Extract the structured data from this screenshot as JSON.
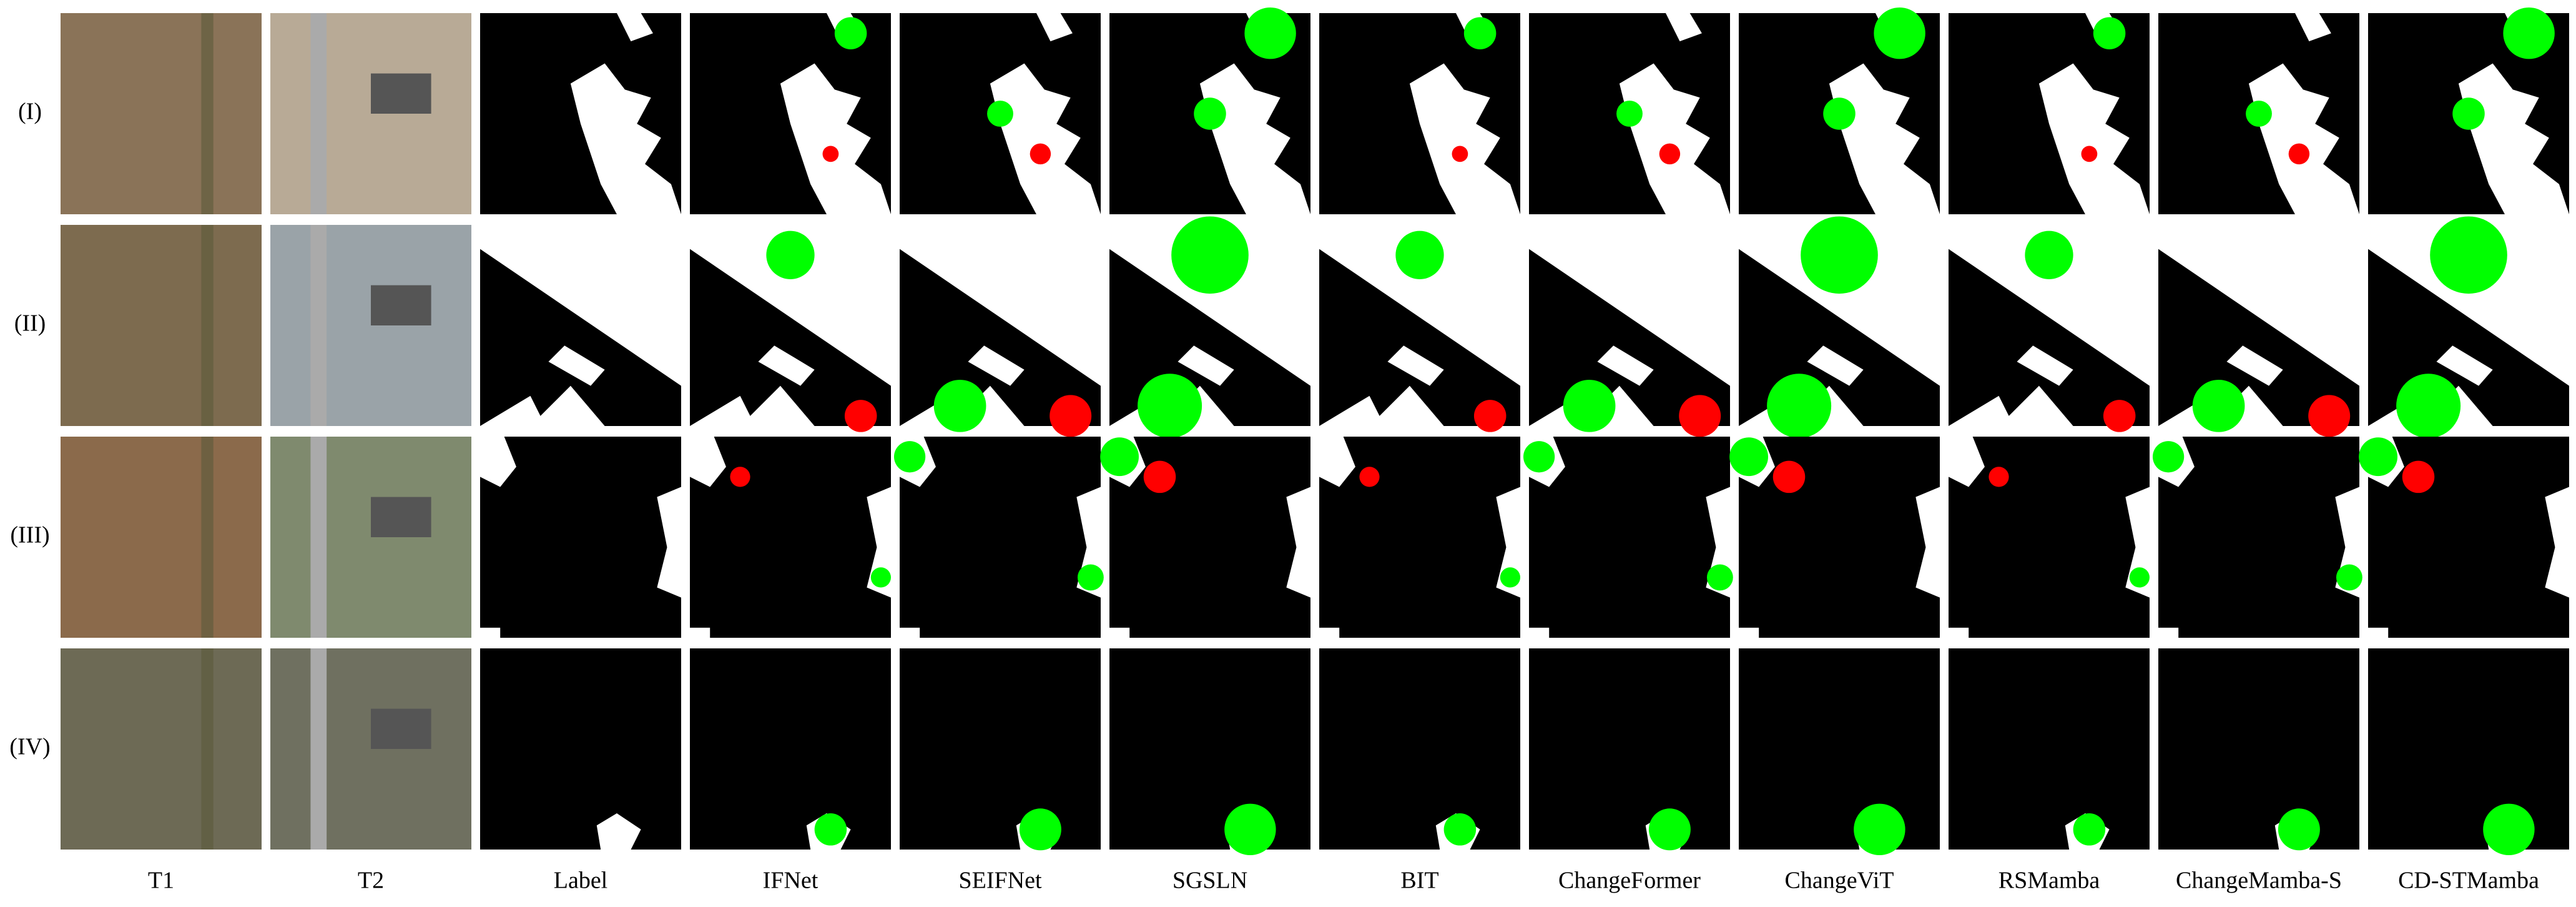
{
  "row_labels": [
    "(I)",
    "(II)",
    "(III)",
    "(IV)"
  ],
  "column_labels": [
    "T1",
    "T2",
    "Label",
    "IFNet",
    "SEIFNet",
    "SGSLN",
    "BIT",
    "ChangeFormer",
    "ChangeViT",
    "RSMamba",
    "ChangeMamba-S",
    "CD-STMamba"
  ]
}
